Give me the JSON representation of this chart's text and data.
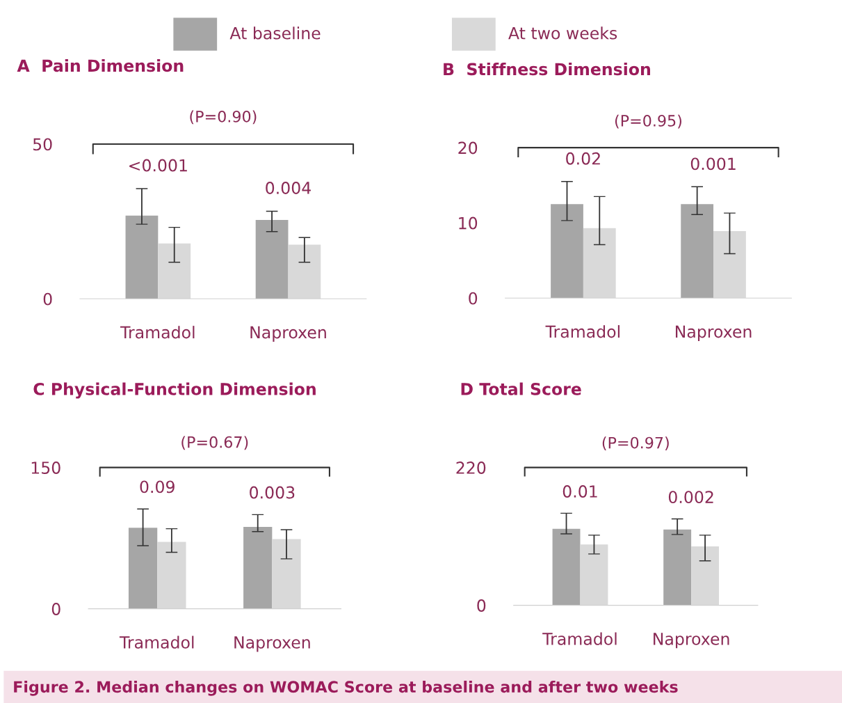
{
  "chart_data": [
    {
      "type": "bar",
      "title": "A  Pain Dimension",
      "categories": [
        "Tramadol",
        "Naproxen"
      ],
      "ylim": [
        0,
        50
      ],
      "yticks": [
        0,
        50
      ],
      "legend": "top",
      "series": [
        {
          "name": "At baseline",
          "color": "#a6a6a6",
          "values": [
            26.9,
            25.5
          ],
          "errors": [
            [
              24.1,
              35.6
            ],
            [
              21.7,
              28.3
            ]
          ]
        },
        {
          "name": "At two weeks",
          "color": "#d9d9d9",
          "values": [
            17.9,
            17.5
          ],
          "errors": [
            [
              11.8,
              23.1
            ],
            [
              11.8,
              19.8
            ]
          ]
        }
      ],
      "annotations": [
        "(P=0.90)",
        "<0.001",
        "0.004",
        "Figure 2. Median changes on WOMAC Score at baseline and after two weeks"
      ]
    },
    {
      "type": "bar",
      "title": "B  Stiffness Dimension",
      "categories": [
        "Tramadol",
        "Naproxen"
      ],
      "ylim": [
        0,
        20
      ],
      "yticks": [
        0,
        10,
        20
      ],
      "series": [
        {
          "color": "#a6a6a6",
          "values": [
            12.5,
            12.5
          ],
          "errors": [
            [
              10.3,
              15.5
            ],
            [
              11.1,
              14.8
            ]
          ]
        },
        {
          "color": "#d9d9d9",
          "values": [
            9.3,
            8.9
          ],
          "errors": [
            [
              7.1,
              13.5
            ],
            [
              5.9,
              11.3
            ]
          ]
        }
      ],
      "annotations": [
        "(P=0.95)",
        "0.02",
        "0.001"
      ]
    },
    {
      "type": "bar",
      "title": "C Physical-Function Dimension",
      "categories": [
        "Tramadol",
        "Naproxen"
      ],
      "ylim": [
        0,
        150
      ],
      "yticks": [
        0,
        150
      ],
      "series": [
        {
          "color": "#a6a6a6",
          "values": [
            86,
            87
          ],
          "errors": [
            [
              67,
              106
            ],
            [
              82,
              100
            ]
          ]
        },
        {
          "color": "#d9d9d9",
          "values": [
            71,
            74
          ],
          "errors": [
            [
              60,
              85
            ],
            [
              53,
              84
            ]
          ]
        }
      ],
      "annotations": [
        "(P=0.67)",
        "0.09",
        "0.003"
      ]
    },
    {
      "type": "bar",
      "title": "D Total Score",
      "categories": [
        "Tramadol",
        "Naproxen"
      ],
      "ylim": [
        0,
        220
      ],
      "yticks": [
        0,
        220
      ],
      "series": [
        {
          "color": "#a6a6a6",
          "values": [
            122,
            121
          ],
          "errors": [
            [
              114,
              147
            ],
            [
              113,
              138
            ]
          ]
        },
        {
          "color": "#d9d9d9",
          "values": [
            97,
            94
          ],
          "errors": [
            [
              82,
              112
            ],
            [
              71,
              112
            ]
          ]
        }
      ],
      "annotations": [
        "(P=0.97)",
        "0.01",
        "0.002"
      ]
    }
  ]
}
